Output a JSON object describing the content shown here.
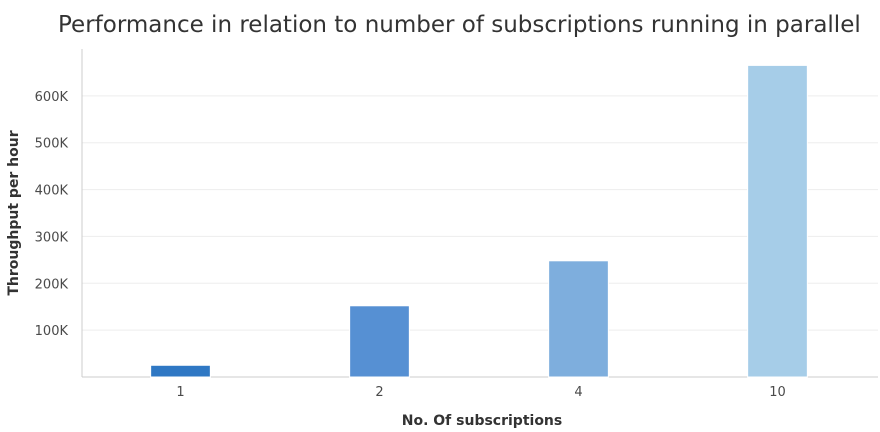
{
  "chart_data": {
    "type": "bar",
    "title": "Performance in relation to number of subscriptions running in parallel",
    "xlabel": "No. Of subscriptions",
    "ylabel": "Throughput per hour",
    "categories": [
      "1",
      "2",
      "4",
      "10"
    ],
    "values": [
      25000,
      152000,
      248000,
      665000
    ],
    "ylim": [
      0,
      700000
    ],
    "yticks": [
      100000,
      200000,
      300000,
      400000,
      500000,
      600000
    ],
    "ytick_labels": [
      "100K",
      "200K",
      "300K",
      "400K",
      "500K",
      "600K"
    ],
    "grid": true,
    "legend": "none",
    "colors": [
      "#2f78c4",
      "#5690d3",
      "#7eaedd",
      "#a6cde8"
    ]
  }
}
